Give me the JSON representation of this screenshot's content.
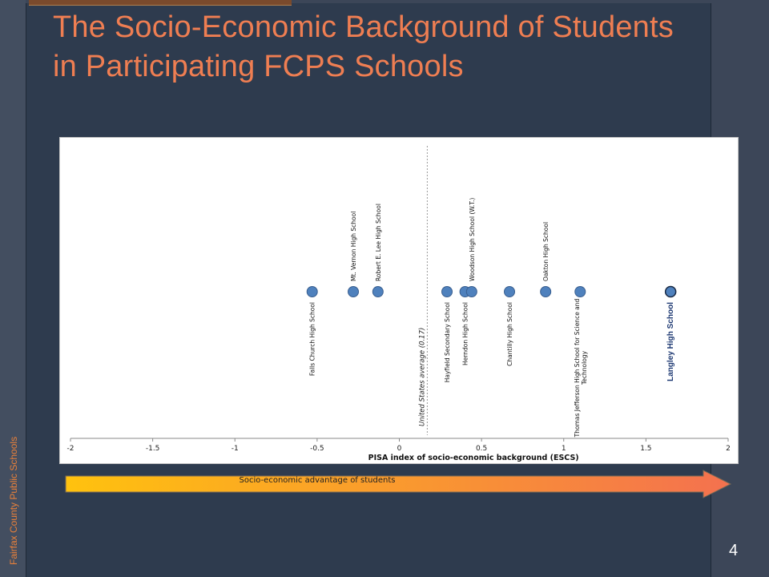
{
  "slide": {
    "title": "The Socio-Economic Background of Students in Participating FCPS Schools",
    "footer": "Fairfax County Public Schools",
    "page_number": "4",
    "arrow_label": "Socio-economic advantage of students"
  },
  "colors": {
    "title": "#ef7e52",
    "marker": "#4f81bd",
    "highlight_marker": "#4f81bd",
    "highlight_label": "#1f3a73",
    "arrow_start": "#ffc20e",
    "arrow_end": "#f4714f"
  },
  "chart_data": {
    "type": "scatter",
    "title": "",
    "xlabel": "PISA index of socio-economic background (ESCS)",
    "ylabel": "",
    "xlim": [
      -2,
      2
    ],
    "xticks": [
      "-2",
      "-1.5",
      "-1",
      "-0.5",
      "0",
      "0.5",
      "1",
      "1.5",
      "2"
    ],
    "reference_line": {
      "x": 0.17,
      "label": "United States average (0.17)"
    },
    "points": [
      {
        "name": "Falls Church High School",
        "x": -0.53,
        "label_side": "below"
      },
      {
        "name": "Mt. Vernon High School",
        "x": -0.28,
        "label_side": "above"
      },
      {
        "name": "Robert E. Lee High School",
        "x": -0.13,
        "label_side": "above"
      },
      {
        "name": "Hayfield  Secondary School",
        "x": 0.29,
        "label_side": "below"
      },
      {
        "name": "Herndon High School",
        "x": 0.4,
        "label_side": "below"
      },
      {
        "name": "Woodson High School (W.T.)",
        "x": 0.44,
        "label_side": "above"
      },
      {
        "name": "Chantilly High School",
        "x": 0.67,
        "label_side": "below"
      },
      {
        "name": "Oakton High School",
        "x": 0.89,
        "label_side": "above"
      },
      {
        "name": "Thomas Jefferson High School for Science and Technology",
        "name_lines": [
          "Thomas Jefferson High School for Science and",
          "Technology"
        ],
        "x": 1.1,
        "label_side": "below"
      },
      {
        "name": "Langley High School",
        "x": 1.65,
        "label_side": "below",
        "highlight": true
      }
    ]
  }
}
